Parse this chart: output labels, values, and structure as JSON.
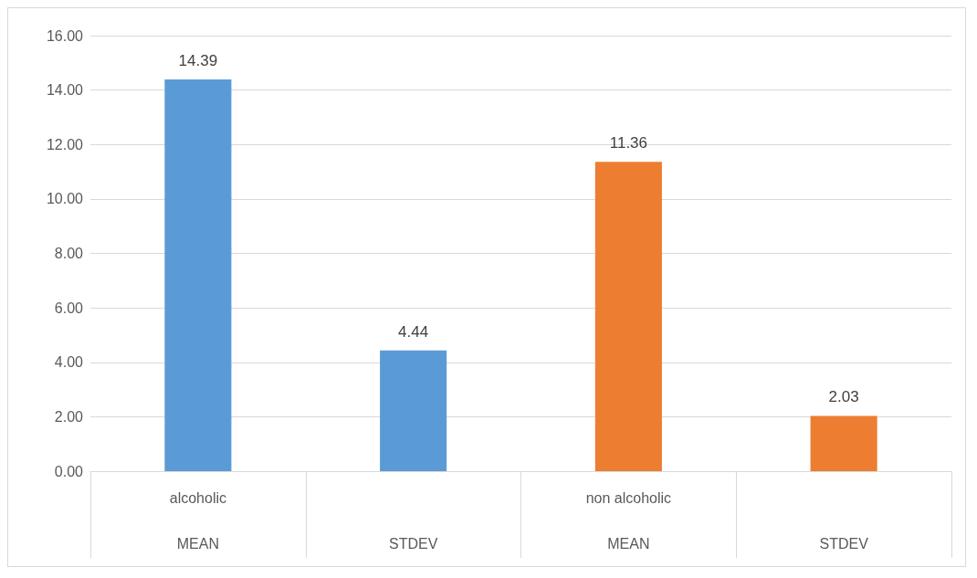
{
  "chart_data": {
    "type": "bar",
    "categories": [
      "alcoholic\nMEAN",
      "\nSTDEV",
      "non alcoholic\nMEAN",
      "\nSTDEV"
    ],
    "values": [
      14.39,
      4.44,
      11.36,
      2.03
    ],
    "colors": [
      "#5b9bd5",
      "#5b9bd5",
      "#ed7d31",
      "#ed7d31"
    ],
    "data_labels": true,
    "grid": "y",
    "ylim": [
      0,
      16
    ],
    "yticks": [
      {
        "value": 0,
        "label": "0.00"
      },
      {
        "value": 2,
        "label": "2.00"
      },
      {
        "value": 4,
        "label": "4.00"
      },
      {
        "value": 6,
        "label": "6.00"
      },
      {
        "value": 8,
        "label": "8.00"
      },
      {
        "value": 10,
        "label": "10.00"
      },
      {
        "value": 12,
        "label": "12.00"
      },
      {
        "value": 14,
        "label": "14.00"
      },
      {
        "value": 16,
        "label": "16.00"
      }
    ]
  }
}
